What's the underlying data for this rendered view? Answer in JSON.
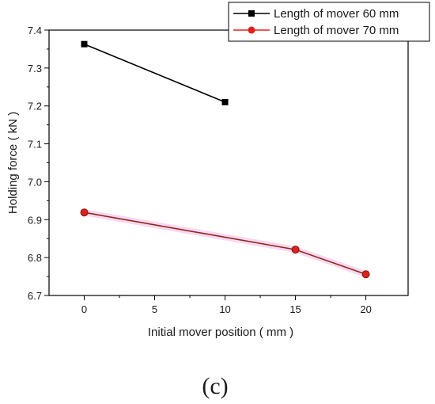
{
  "chart_data": {
    "type": "line",
    "xlabel": "Initial mover position ( mm )",
    "ylabel": "Holding force ( kN )",
    "xlim": [
      -2.5,
      23
    ],
    "ylim": [
      6.7,
      7.4
    ],
    "xticks": [
      0,
      5,
      10,
      15,
      20
    ],
    "yticks": [
      6.7,
      6.8,
      6.9,
      7.0,
      7.1,
      7.2,
      7.3,
      7.4
    ],
    "xtick_labels": [
      "0",
      "5",
      "10",
      "15",
      "20"
    ],
    "ytick_labels": [
      "6.7",
      "6.8",
      "6.9",
      "7.0",
      "7.1",
      "7.2",
      "7.3",
      "7.4"
    ],
    "legend_position": "top-right",
    "grid": false,
    "series": [
      {
        "name": "Length of mover 60 mm",
        "color": "#000000",
        "marker": "square",
        "x": [
          0,
          10
        ],
        "y": [
          7.363,
          7.21
        ]
      },
      {
        "name": "Length of mover 70 mm",
        "color": "#e0201b",
        "line_color": "#8a2a1a",
        "marker": "circle",
        "x": [
          0,
          15,
          20
        ],
        "y": [
          6.919,
          6.821,
          6.756
        ]
      }
    ]
  },
  "panel_label": "(c)"
}
